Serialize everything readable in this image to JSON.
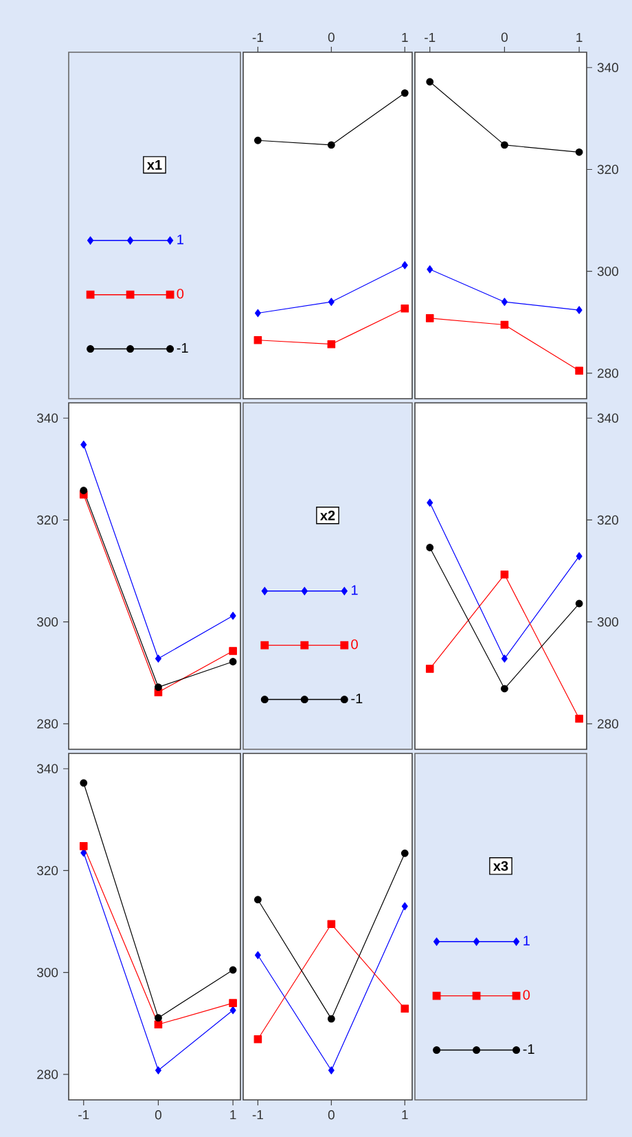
{
  "chart_data": [
    {
      "type": "other",
      "legend_title": "x1",
      "legend": "center",
      "series": [
        {
          "name": "1",
          "color": "#0000ff",
          "marker": "diamond"
        },
        {
          "name": "0",
          "color": "#ff0000",
          "marker": "square"
        },
        {
          "name": "-1",
          "color": "#000000",
          "marker": "circle"
        }
      ]
    },
    {
      "type": "line",
      "x": [
        -1,
        0,
        1
      ],
      "xlim": [
        -1.2,
        1.1
      ],
      "xticks": [
        -1,
        0,
        1
      ],
      "ylim": [
        275,
        343
      ],
      "tick_labels": "x",
      "series": [
        {
          "color": "#0000ff",
          "marker": "diamond",
          "values": [
            291.8,
            294.0,
            301.2
          ]
        },
        {
          "color": "#ff0000",
          "marker": "square",
          "values": [
            286.5,
            285.7,
            292.7
          ]
        },
        {
          "color": "#000000",
          "marker": "circle",
          "values": [
            325.7,
            324.8,
            335.0
          ]
        }
      ]
    },
    {
      "type": "line",
      "x": [
        -1,
        0,
        1
      ],
      "xlim": [
        -1.2,
        1.1
      ],
      "xticks": [
        -1,
        0,
        1
      ],
      "ylim": [
        275,
        343
      ],
      "yticks": [
        280,
        300,
        320,
        340
      ],
      "series": [
        {
          "color": "#0000ff",
          "marker": "diamond",
          "values": [
            300.4,
            294.0,
            292.4
          ]
        },
        {
          "color": "#ff0000",
          "marker": "square",
          "values": [
            290.8,
            289.5,
            280.5
          ]
        },
        {
          "color": "#000000",
          "marker": "circle",
          "values": [
            337.2,
            324.8,
            323.4
          ]
        }
      ]
    },
    {
      "type": "line",
      "x": [
        -1,
        0,
        1
      ],
      "xlim": [
        -1.2,
        1.1
      ],
      "ylim": [
        275,
        343
      ],
      "yticks": [
        280,
        300,
        320,
        340
      ],
      "tick_labels": "y",
      "series": [
        {
          "color": "#0000ff",
          "marker": "diamond",
          "values": [
            334.8,
            292.8,
            301.2
          ]
        },
        {
          "color": "#ff0000",
          "marker": "square",
          "values": [
            325.0,
            286.2,
            294.3
          ]
        },
        {
          "color": "#000000",
          "marker": "circle",
          "values": [
            325.8,
            287.2,
            292.2
          ]
        }
      ]
    },
    {
      "type": "other",
      "legend_title": "x2",
      "legend": "center",
      "series": [
        {
          "name": "1",
          "color": "#0000ff",
          "marker": "diamond"
        },
        {
          "name": "0",
          "color": "#ff0000",
          "marker": "square"
        },
        {
          "name": "-1",
          "color": "#000000",
          "marker": "circle"
        }
      ]
    },
    {
      "type": "line",
      "x": [
        -1,
        0,
        1
      ],
      "xlim": [
        -1.2,
        1.1
      ],
      "ylim": [
        275,
        343
      ],
      "yticks": [
        280,
        300,
        320,
        340
      ],
      "tick_labels": "y",
      "series": [
        {
          "color": "#0000ff",
          "marker": "diamond",
          "values": [
            323.4,
            292.8,
            312.9
          ]
        },
        {
          "color": "#ff0000",
          "marker": "square",
          "values": [
            290.8,
            309.3,
            281.0
          ]
        },
        {
          "color": "#000000",
          "marker": "circle",
          "values": [
            314.6,
            286.9,
            303.6
          ]
        }
      ]
    },
    {
      "type": "line",
      "x": [
        -1,
        0,
        1
      ],
      "xlim": [
        -1.2,
        1.1
      ],
      "xticks": [
        -1,
        0,
        1
      ],
      "ylim": [
        275,
        343
      ],
      "yticks": [
        280,
        300,
        320,
        340
      ],
      "series": [
        {
          "color": "#0000ff",
          "marker": "diamond",
          "values": [
            323.5,
            280.8,
            292.6
          ]
        },
        {
          "color": "#ff0000",
          "marker": "square",
          "values": [
            324.8,
            289.8,
            294.0
          ]
        },
        {
          "color": "#000000",
          "marker": "circle",
          "values": [
            337.2,
            291.1,
            300.5
          ]
        }
      ]
    },
    {
      "type": "line",
      "x": [
        -1,
        0,
        1
      ],
      "xlim": [
        -1.2,
        1.1
      ],
      "xticks": [
        -1,
        0,
        1
      ],
      "ylim": [
        275,
        343
      ],
      "tick_labels": "x",
      "series": [
        {
          "color": "#0000ff",
          "marker": "diamond",
          "values": [
            303.4,
            280.8,
            313.0
          ]
        },
        {
          "color": "#ff0000",
          "marker": "square",
          "values": [
            286.9,
            309.5,
            292.9
          ]
        },
        {
          "color": "#000000",
          "marker": "circle",
          "values": [
            314.3,
            290.9,
            323.4
          ]
        }
      ]
    },
    {
      "type": "other",
      "legend_title": "x3",
      "legend": "center",
      "series": [
        {
          "name": "1",
          "color": "#0000ff",
          "marker": "diamond"
        },
        {
          "name": "0",
          "color": "#ff0000",
          "marker": "square"
        },
        {
          "name": "-1",
          "color": "#000000",
          "marker": "circle"
        }
      ]
    }
  ]
}
